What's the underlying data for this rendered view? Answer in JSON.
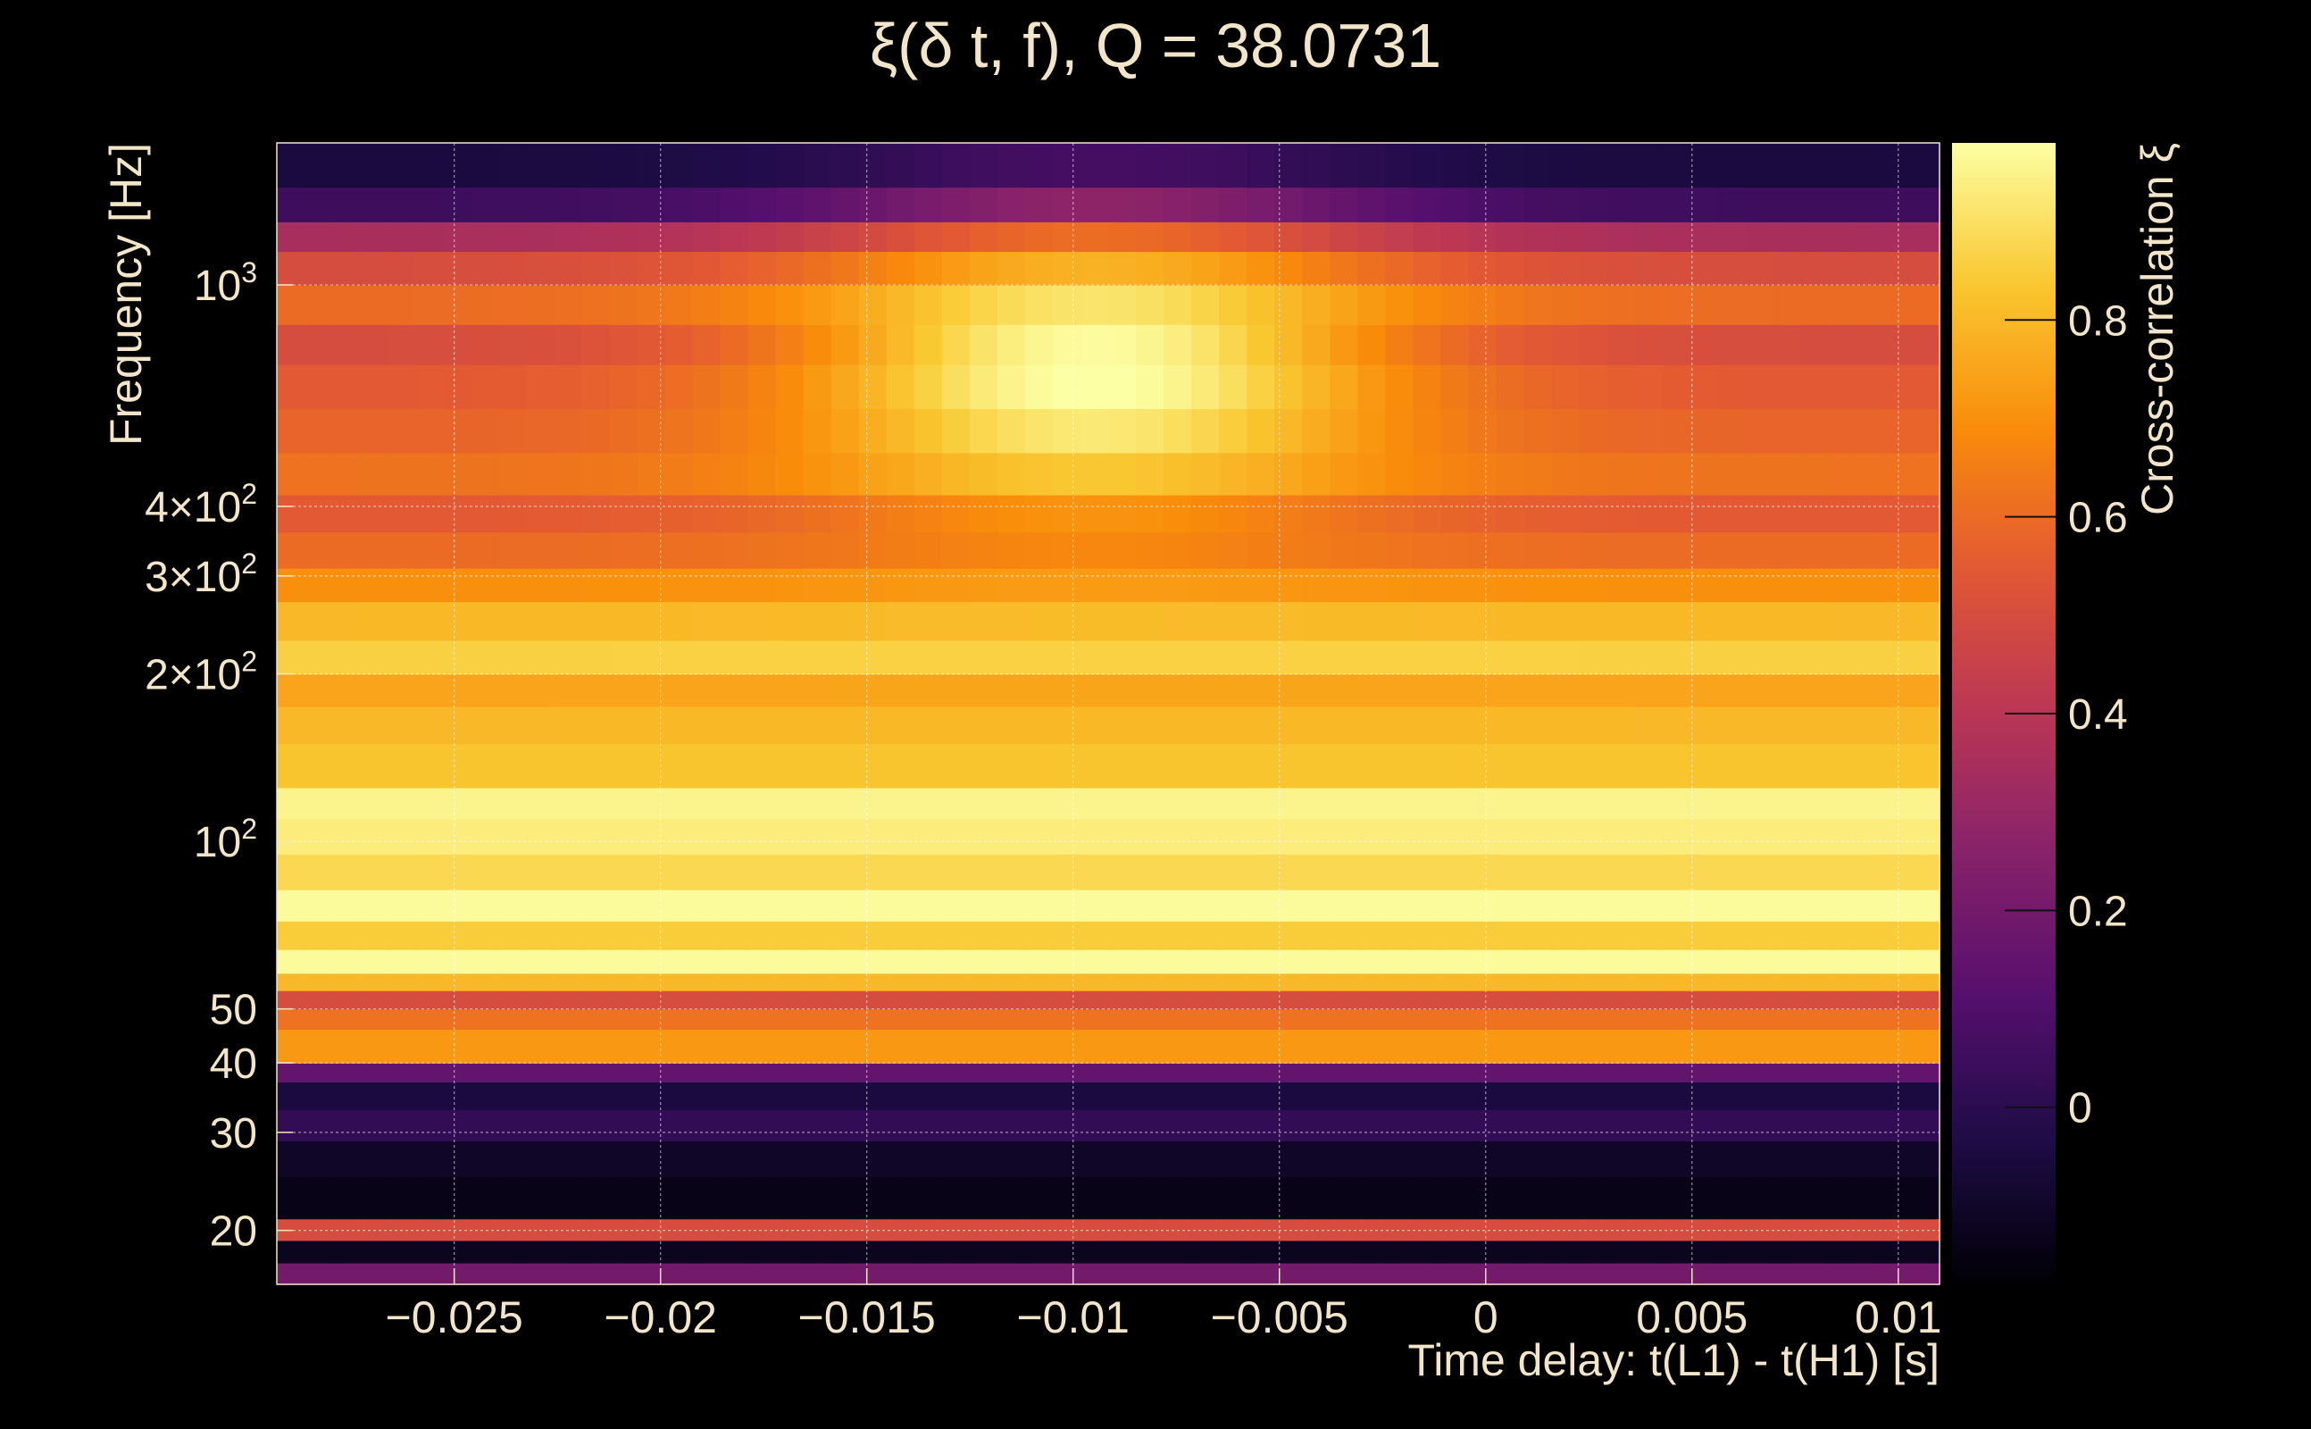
{
  "chart_data": {
    "type": "heatmap",
    "title": "ξ(δ t, f), Q = 38.0731",
    "xlabel": "Time delay: t(L1) - t(H1) [s]",
    "ylabel": "Frequency [Hz]",
    "colorbar_label": "Cross-correlation ξ",
    "x_range": [
      -0.0293,
      0.011
    ],
    "y_range": [
      16,
      1800
    ],
    "y_scale": "log",
    "colorbar_range": [
      -0.18,
      0.98
    ],
    "colormap": "inferno",
    "x_ticks": [
      {
        "value": -0.025,
        "label": "−0.025"
      },
      {
        "value": -0.02,
        "label": "−0.02"
      },
      {
        "value": -0.015,
        "label": "−0.015"
      },
      {
        "value": -0.01,
        "label": "−0.01"
      },
      {
        "value": -0.005,
        "label": "−0.005"
      },
      {
        "value": 0,
        "label": "0"
      },
      {
        "value": 0.005,
        "label": "0.005"
      },
      {
        "value": 0.01,
        "label": "0.01"
      }
    ],
    "y_ticks": [
      {
        "value": 20,
        "label": "20",
        "sup": ""
      },
      {
        "value": 30,
        "label": "30",
        "sup": ""
      },
      {
        "value": 40,
        "label": "40",
        "sup": ""
      },
      {
        "value": 50,
        "label": "50",
        "sup": ""
      },
      {
        "value": 100,
        "label": "10",
        "sup": "2"
      },
      {
        "value": 200,
        "label": "2×10",
        "sup": "2"
      },
      {
        "value": 300,
        "label": "3×10",
        "sup": "2"
      },
      {
        "value": 400,
        "label": "4×10",
        "sup": "2"
      },
      {
        "value": 1000,
        "label": "10",
        "sup": "3"
      }
    ],
    "colorbar_ticks": [
      {
        "value": 0,
        "label": "0"
      },
      {
        "value": 0.2,
        "label": "0.2"
      },
      {
        "value": 0.4,
        "label": "0.4"
      },
      {
        "value": 0.6,
        "label": "0.6"
      },
      {
        "value": 0.8,
        "label": "0.8"
      }
    ],
    "bands": [
      {
        "f_low": 16,
        "f_high": 17.5,
        "xi": 0.2
      },
      {
        "f_low": 17.5,
        "f_high": 19.2,
        "xi": -0.12
      },
      {
        "f_low": 19.2,
        "f_high": 21,
        "xi": 0.5
      },
      {
        "f_low": 21,
        "f_high": 25,
        "xi": -0.14
      },
      {
        "f_low": 25,
        "f_high": 29,
        "xi": -0.1
      },
      {
        "f_low": 29,
        "f_high": 33,
        "xi": 0.02
      },
      {
        "f_low": 33,
        "f_high": 37,
        "xi": -0.05
      },
      {
        "f_low": 37,
        "f_high": 40,
        "xi": 0.15
      },
      {
        "f_low": 40,
        "f_high": 46,
        "xi": 0.72
      },
      {
        "f_low": 46,
        "f_high": 50,
        "xi": 0.62
      },
      {
        "f_low": 50,
        "f_high": 54,
        "xi": 0.5
      },
      {
        "f_low": 54,
        "f_high": 58,
        "xi": 0.8
      },
      {
        "f_low": 58,
        "f_high": 64,
        "xi": 0.97
      },
      {
        "f_low": 64,
        "f_high": 72,
        "xi": 0.85
      },
      {
        "f_low": 72,
        "f_high": 82,
        "xi": 0.97
      },
      {
        "f_low": 82,
        "f_high": 95,
        "xi": 0.88
      },
      {
        "f_low": 95,
        "f_high": 110,
        "xi": 0.93
      },
      {
        "f_low": 110,
        "f_high": 125,
        "xi": 0.95
      },
      {
        "f_low": 125,
        "f_high": 150,
        "xi": 0.83
      },
      {
        "f_low": 150,
        "f_high": 175,
        "xi": 0.8
      },
      {
        "f_low": 175,
        "f_high": 200,
        "xi": 0.75
      },
      {
        "f_low": 200,
        "f_high": 230,
        "xi": 0.86
      },
      {
        "f_low": 230,
        "f_high": 270,
        "xi": 0.8
      },
      {
        "f_low": 270,
        "f_high": 310,
        "xi": 0.7
      },
      {
        "f_low": 310,
        "f_high": 360,
        "xi": 0.6
      },
      {
        "f_low": 360,
        "f_high": 420,
        "xi": 0.55
      },
      {
        "f_low": 420,
        "f_high": 500,
        "xi": 0.62
      },
      {
        "f_low": 500,
        "f_high": 600,
        "xi": 0.58
      },
      {
        "f_low": 600,
        "f_high": 720,
        "xi": 0.55
      },
      {
        "f_low": 720,
        "f_high": 850,
        "xi": 0.5
      },
      {
        "f_low": 850,
        "f_high": 1000,
        "xi": 0.6
      },
      {
        "f_low": 1000,
        "f_high": 1150,
        "xi": 0.5
      },
      {
        "f_low": 1150,
        "f_high": 1300,
        "xi": 0.35
      },
      {
        "f_low": 1300,
        "f_high": 1500,
        "xi": 0.05
      },
      {
        "f_low": 1500,
        "f_high": 1800,
        "xi": -0.05
      }
    ],
    "peak": {
      "center_delay": -0.0095,
      "center_freq": 700,
      "peak_xi": 0.99,
      "width_delay": 0.007,
      "f_min": 300,
      "f_max": 1300
    }
  }
}
